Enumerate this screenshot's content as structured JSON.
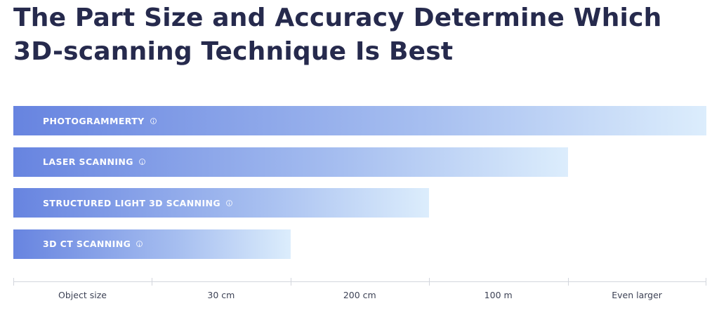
{
  "chart_data": {
    "type": "bar",
    "orientation": "horizontal",
    "title": "The Part Size and Accuracy Determine Which 3D-scanning Technique Is Best",
    "categories": [
      "PHOTOGRAMMERTY",
      "LASER SCANNING",
      "STRUCTURED LIGHT 3D SCANNING",
      "3D CT SCANNING"
    ],
    "values": [
      5,
      4,
      3,
      2
    ],
    "xlim": [
      0,
      5
    ],
    "x_tick_labels": [
      "Object size",
      "30 cm",
      "200 cm",
      "100 m",
      "Even larger"
    ],
    "grid": false,
    "bar_gradient": [
      "#6784e0",
      "#dcedfc"
    ],
    "label_color": "#ffffff",
    "title_color": "#262a4d"
  }
}
